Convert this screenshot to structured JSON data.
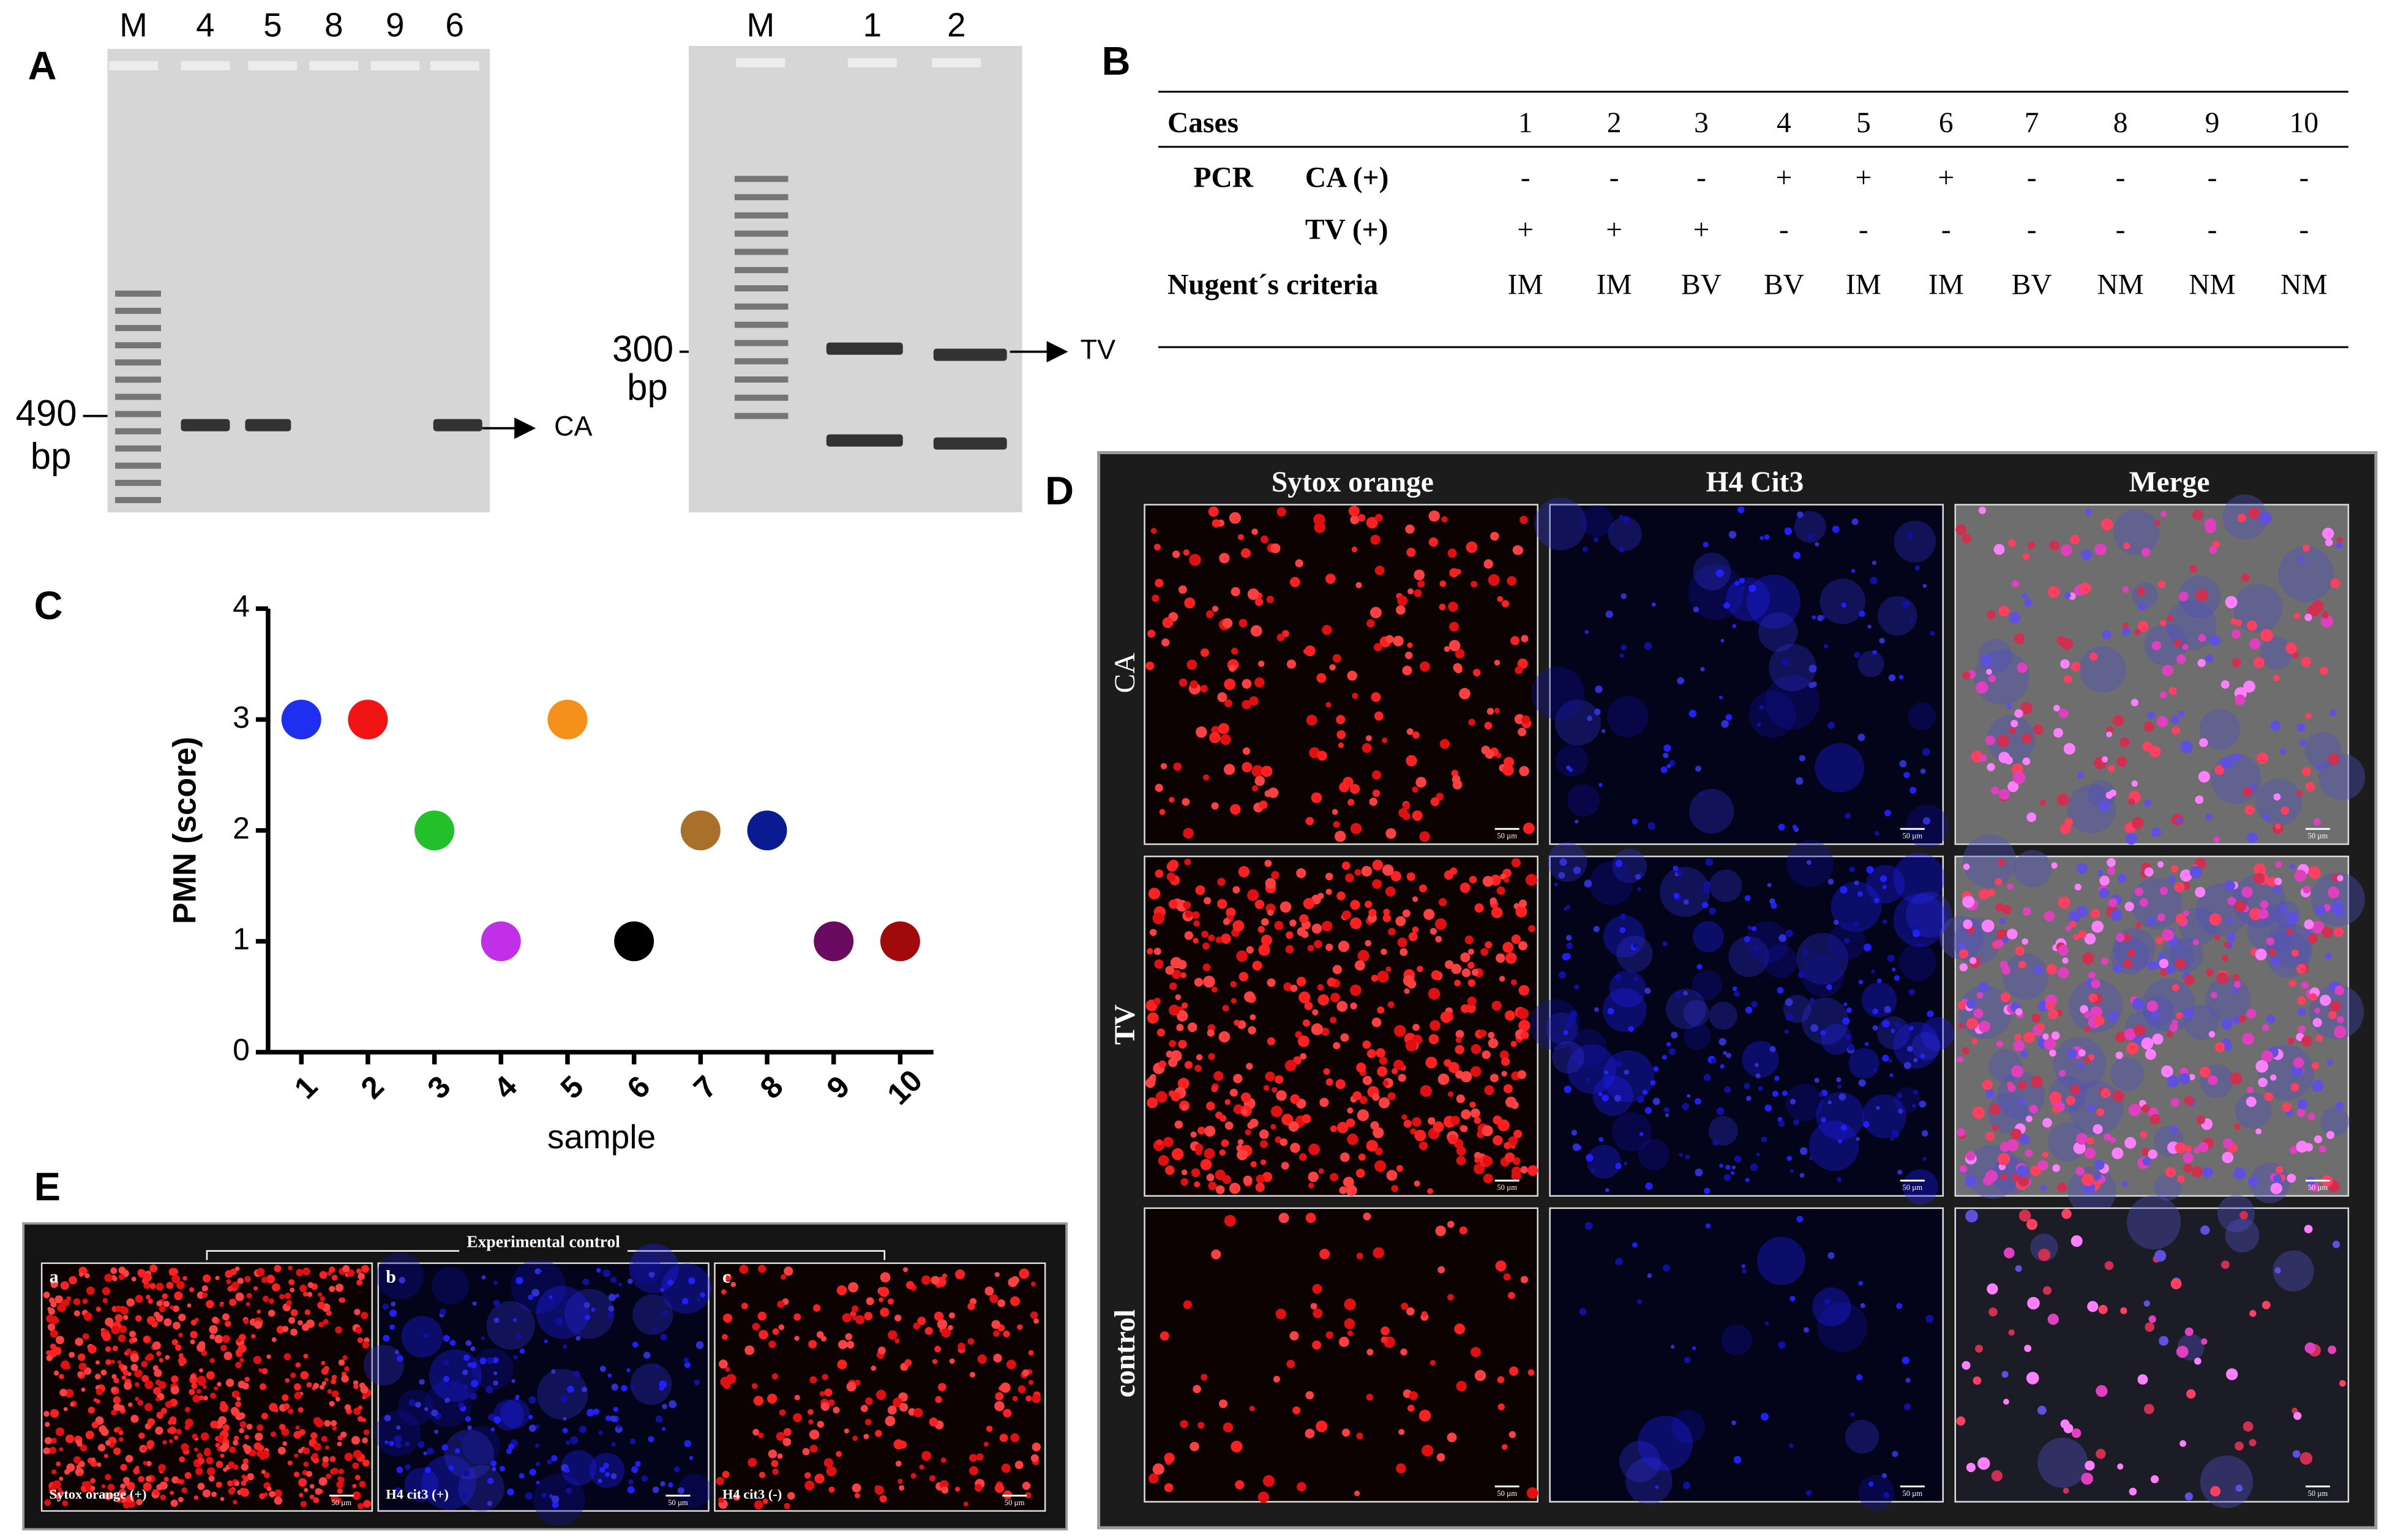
{
  "panel_labels": [
    "A",
    "B",
    "C",
    "D",
    "E"
  ],
  "gels": [
    {
      "lanes": [
        "M",
        "4",
        "5",
        "8",
        "9",
        "6"
      ],
      "size_label": "490",
      "unit": "bp",
      "target": "CA"
    },
    {
      "lanes": [
        "M",
        "1",
        "2"
      ],
      "size_label": "300",
      "unit": "bp",
      "target": "TV"
    }
  ],
  "table": {
    "header": [
      "Cases",
      "1",
      "2",
      "3",
      "4",
      "5",
      "6",
      "7",
      "8",
      "9",
      "10"
    ],
    "group": "PCR",
    "rows": [
      {
        "label": "CA (+)",
        "cells": [
          "-",
          "-",
          "-",
          "+",
          "+",
          "+",
          "-",
          "-",
          "-",
          "-"
        ]
      },
      {
        "label": "TV (+)",
        "cells": [
          "+",
          "+",
          "+",
          "-",
          "-",
          "-",
          "-",
          "-",
          "-",
          "-"
        ]
      },
      {
        "label": "Nugent´s criteria",
        "cells": [
          "IM",
          "IM",
          "BV",
          "BV",
          "IM",
          "IM",
          "BV",
          "NM",
          "NM",
          "NM"
        ]
      }
    ]
  },
  "chart_data": {
    "type": "scatter",
    "y_label": "PMN (score)",
    "x_label": "sample",
    "x": [
      1,
      2,
      3,
      4,
      5,
      6,
      7,
      8,
      9,
      10
    ],
    "values": [
      3,
      3,
      2,
      1,
      3,
      1,
      2,
      2,
      1,
      1
    ],
    "colors": [
      "#1f2ff0",
      "#f01414",
      "#22c02a",
      "#c030e8",
      "#f5901a",
      "#000000",
      "#a8702a",
      "#0a1a90",
      "#6a0a60",
      "#a00a0a"
    ],
    "xlim": [
      0.5,
      10.5
    ],
    "xticks": [
      1,
      2,
      3,
      4,
      5,
      6,
      7,
      8,
      9,
      10
    ],
    "ylim": [
      0,
      4
    ],
    "yticks": [
      0,
      1,
      2,
      3,
      4
    ]
  },
  "microscopy": {
    "columns": [
      "Sytox orange",
      "H4 Cit3",
      "Merge"
    ],
    "rows": [
      "CA",
      "TV",
      "control"
    ],
    "scale_bar": "50 µm"
  },
  "control_panel": {
    "title": "Experimental control",
    "panels": [
      {
        "letter": "a",
        "label": "Sytox orange (+)"
      },
      {
        "letter": "b",
        "label": "H4 cit3 (+)"
      },
      {
        "letter": "c",
        "label": "H4 cit3 (-)"
      }
    ]
  }
}
